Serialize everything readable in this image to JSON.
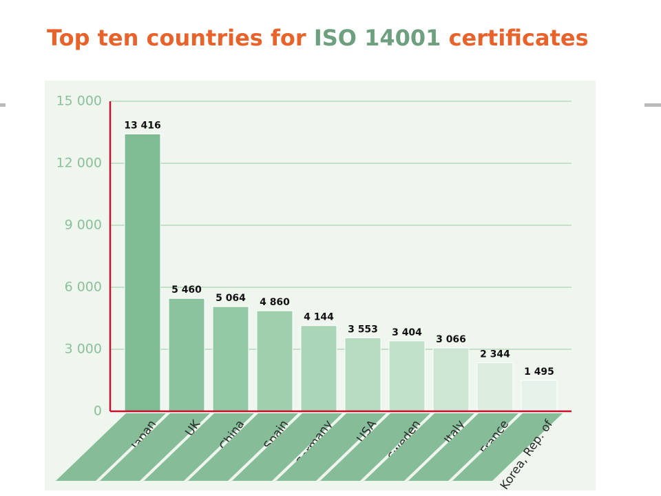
{
  "chart_data": {
    "type": "bar",
    "title": [
      "Top ten countries for ",
      "ISO 14001",
      " certificates"
    ],
    "title_colors": [
      "#e8622c",
      "#6e9f7f",
      "#e8622c"
    ],
    "categories": [
      "Japan",
      "UK",
      "China",
      "Spain",
      "Germany",
      "USA",
      "Sweden",
      "Italy",
      "France",
      "Korea, Rep. of"
    ],
    "values": [
      13416,
      5460,
      5064,
      4860,
      4144,
      3553,
      3404,
      3066,
      2344,
      1495
    ],
    "value_labels": [
      "13 416",
      "5 460",
      "5 064",
      "4 860",
      "4 144",
      "3 553",
      "3 404",
      "3 066",
      "2 344",
      "1 495"
    ],
    "colors": [
      "#7fbc94",
      "#8ac39e",
      "#93c8a4",
      "#a0cfae",
      "#abd5b7",
      "#b7dbc0",
      "#c2e1ca",
      "#cde6d3",
      "#dbeddf",
      "#e7f3ea"
    ],
    "ylim": [
      0,
      15000
    ],
    "yticks": [
      0,
      {
        "value": 3000,
        "label": "3 000"
      },
      {
        "value": 6000,
        "label": "6 000"
      },
      {
        "value": 9000,
        "label": "9 000"
      },
      {
        "value": 12000,
        "label": "12 000"
      },
      {
        "value": 15000,
        "label": "15 000"
      }
    ],
    "grid": true
  }
}
